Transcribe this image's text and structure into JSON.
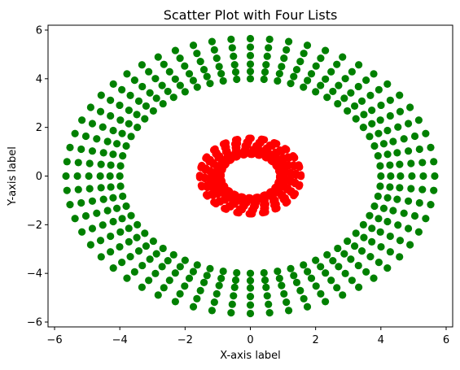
{
  "chart_data": {
    "type": "scatter",
    "title": "Scatter Plot with Four Lists",
    "xlabel": "X-axis label",
    "ylabel": "Y-axis label",
    "xlim": [
      -6.2,
      6.2
    ],
    "ylim": [
      -6.2,
      6.2
    ],
    "x_ticks": [
      -6,
      -4,
      -2,
      0,
      2,
      4,
      6
    ],
    "y_ticks": [
      -6,
      -4,
      -2,
      0,
      2,
      4,
      6
    ],
    "x_tick_labels": [
      "−6",
      "−4",
      "−2",
      "0",
      "2",
      "4",
      "6"
    ],
    "y_tick_labels": [
      "−6",
      "−4",
      "−2",
      "0",
      "2",
      "4",
      "6"
    ],
    "grid": false,
    "series": [
      {
        "color": "#008000",
        "shape": "ring of radial spokes",
        "spokes": 60,
        "points_per_spoke": 6,
        "radii": [
          4.0,
          4.3,
          4.6,
          4.95,
          5.3,
          5.65
        ]
      },
      {
        "color": "#ff0000",
        "shape": "ring",
        "points": 500,
        "radii": [
          0.9,
          1.0,
          1.1,
          1.25,
          1.4,
          1.55
        ]
      }
    ]
  }
}
